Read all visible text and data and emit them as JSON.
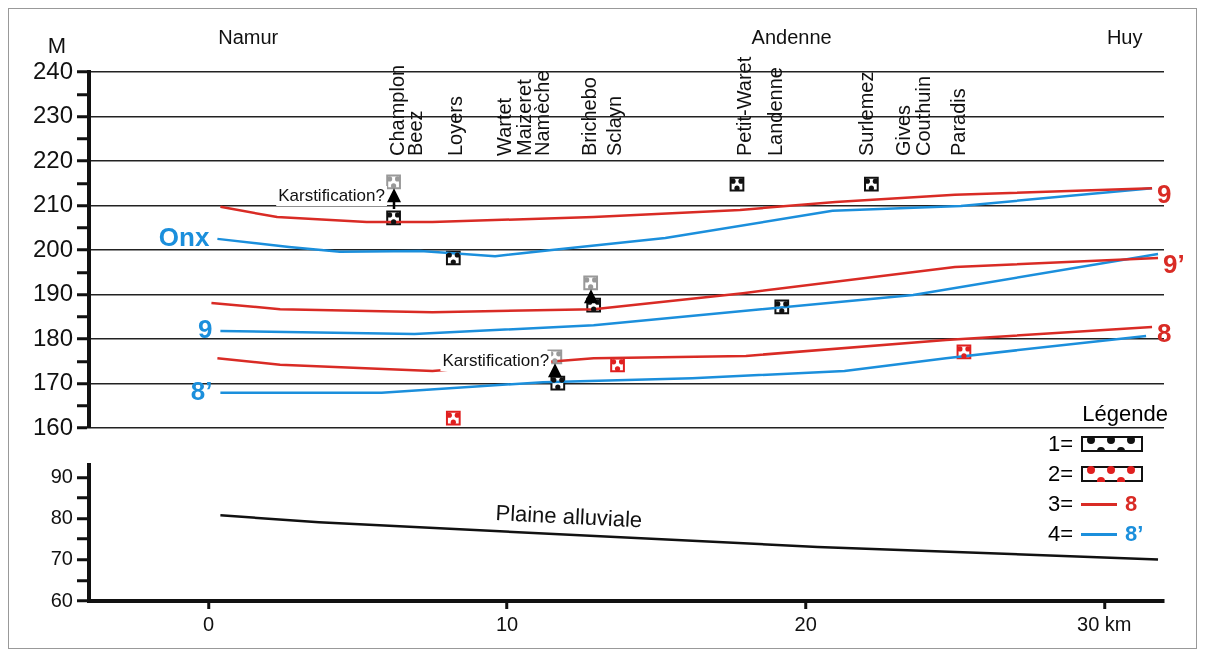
{
  "chart_data": [
    {
      "type": "line",
      "ylabel": "M",
      "xlim": [
        -4,
        32
      ],
      "ylim": [
        160,
        240
      ],
      "yticks": [
        160,
        {
          "value": 165,
          "label": null
        },
        170,
        {
          "value": 175,
          "label": null
        },
        180,
        {
          "value": 185,
          "label": null
        },
        190,
        {
          "value": 195,
          "label": null
        },
        200,
        {
          "value": 205,
          "label": null
        },
        210,
        {
          "value": 215,
          "label": null
        },
        220,
        {
          "value": 225,
          "label": null
        },
        230,
        {
          "value": 235,
          "label": null
        },
        240
      ],
      "tick_labels": "y",
      "grid": "y",
      "marker": "none",
      "legend": "bottom right",
      "legend_title": "Légende",
      "annotations": [
        "Namur",
        "Andenne",
        "Huy",
        "Champlon",
        "Beez",
        "Loyers",
        "Wartet",
        "Maizeret",
        "Namèche",
        "Brichebo",
        "Sclayn",
        "Petit-Waret",
        "Landenne",
        "Surlemez",
        "Gives",
        "Couthuin",
        "Paradis",
        {
          "text": "Karstification?",
          "x": 6.2,
          "y": 207.2
        },
        {
          "text": "Karstification?",
          "x": 11.7,
          "y": 170.1
        },
        "1=",
        "2=",
        "3=",
        "8",
        "4=",
        "8’"
      ],
      "series": [
        {
          "name": "9",
          "type": "line",
          "color": "#d92b25",
          "x": [
            0.4,
            2.3,
            5.3,
            7.5,
            12.9,
            17.8,
            21,
            25,
            31.6
          ],
          "values": [
            209.7,
            207.4,
            206.3,
            206.3,
            207.4,
            209,
            210.8,
            212.4,
            213.9
          ]
        },
        {
          "name": "Onx",
          "type": "line",
          "color": "#1b8fdc",
          "x": [
            0.3,
            2.7,
            4.4,
            7.1,
            9.6,
            11.5,
            15.3,
            20.9,
            25.2,
            31.6
          ],
          "values": [
            202.5,
            200.7,
            199.6,
            199.8,
            198.6,
            200,
            202.7,
            208.8,
            209.9,
            213.9
          ]
        },
        {
          "name": "9’",
          "type": "line",
          "color": "#d92b25",
          "x": [
            0.1,
            2.4,
            7.5,
            12.9,
            17.9,
            25,
            31.8
          ],
          "values": [
            188.1,
            186.7,
            186,
            186.7,
            190.3,
            196.2,
            198.2
          ]
        },
        {
          "name": "9",
          "type": "line",
          "color": "#1b8fdc",
          "x": [
            0.4,
            6.9,
            12.9,
            23.6,
            31.8
          ],
          "values": [
            181.8,
            181.1,
            183.1,
            189.9,
            199.1
          ]
        },
        {
          "name": "8",
          "type": "line",
          "color": "#d92b25",
          "x": [
            0.3,
            2.4,
            7.5,
            12.9,
            18,
            24.7,
            31.6
          ],
          "values": [
            175.7,
            174.2,
            172.8,
            175.7,
            176.2,
            179.8,
            182.7
          ]
        },
        {
          "name": "8’",
          "type": "line",
          "color": "#1b8fdc",
          "x": [
            0.4,
            5.8,
            11.2,
            16.2,
            21.3,
            24.7,
            31.4
          ],
          "values": [
            167.9,
            167.9,
            170.3,
            171.2,
            172.8,
            175.7,
            180.7
          ]
        },
        {
          "type": "scatter",
          "marker": "square",
          "color": "#111111",
          "x": [
            6.2,
            8.2,
            12.9,
            11.7,
            17.7,
            22.2,
            19.2
          ],
          "values": [
            207.2,
            198.2,
            187.6,
            170.1,
            214.8,
            214.8,
            187.2
          ]
        },
        {
          "type": "scatter",
          "marker": "square",
          "color": "#999999",
          "x": [
            6.2,
            12.8,
            11.6
          ],
          "values": [
            215.3,
            192.6,
            176
          ]
        },
        {
          "type": "scatter",
          "marker": "square",
          "color": "#e02020",
          "x": [
            8.2,
            13.7,
            25.3
          ],
          "values": [
            162.2,
            174.2,
            177.1
          ]
        }
      ]
    },
    {
      "type": "line",
      "xlim": [
        -4,
        32
      ],
      "xticks": [
        0,
        10,
        20,
        {
          "value": 30,
          "label": "30 km"
        }
      ],
      "ylim": [
        60,
        93
      ],
      "yticks": [
        60,
        {
          "value": 65,
          "label": null
        },
        70,
        {
          "value": 75,
          "label": null
        },
        80,
        {
          "value": 85,
          "label": null
        },
        90
      ],
      "marker": "none",
      "series": [
        {
          "name": "Plaine alluviale",
          "color": "#111111",
          "x": [
            0.4,
            3.7,
            20.4,
            31.8
          ],
          "values": [
            80.8,
            79.1,
            73.1,
            70.1
          ]
        }
      ]
    }
  ]
}
